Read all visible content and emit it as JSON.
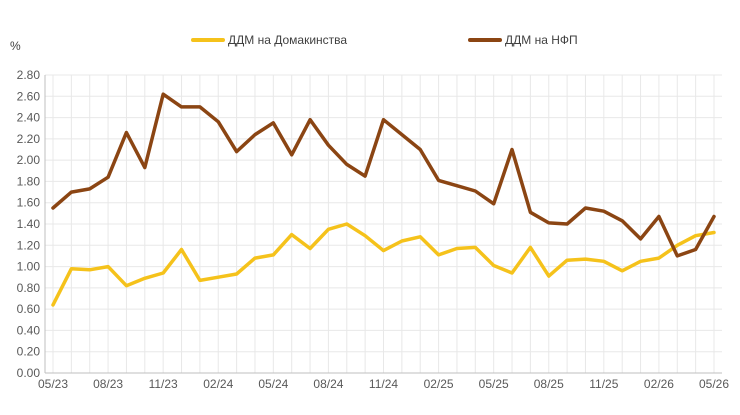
{
  "chart_data": {
    "type": "line",
    "title": "",
    "unit_label": "%",
    "ylim": [
      0,
      2.8
    ],
    "ystep": 0.2,
    "y_ticks": [
      "0.00",
      "0.20",
      "0.40",
      "0.60",
      "0.80",
      "1.00",
      "1.20",
      "1.40",
      "1.60",
      "1.80",
      "2.00",
      "2.20",
      "2.40",
      "2.60",
      "2.80"
    ],
    "x_tick_labels": [
      "05/23",
      "08/23",
      "11/23",
      "02/24",
      "05/24",
      "08/24",
      "11/24",
      "02/25",
      "05/25",
      "08/25",
      "11/25",
      "02/26",
      "05/26"
    ],
    "grid": true,
    "legend_position": "top",
    "x": [
      "05/23",
      "06/23",
      "07/23",
      "08/23",
      "09/23",
      "10/23",
      "11/23",
      "12/23",
      "01/24",
      "02/24",
      "03/24",
      "04/24",
      "05/24",
      "06/24",
      "07/24",
      "08/24",
      "09/24",
      "10/24",
      "11/24",
      "12/24",
      "01/25",
      "02/25",
      "03/25",
      "04/25",
      "05/25",
      "06/25",
      "07/25",
      "08/25",
      "09/25",
      "10/25",
      "11/25",
      "12/25",
      "01/26",
      "02/26",
      "03/26",
      "04/26",
      "05/26"
    ],
    "series": [
      {
        "name": "ДДМ на Домакинства",
        "color": "#F5C21B",
        "values": [
          0.64,
          0.98,
          0.97,
          1.0,
          0.82,
          0.89,
          0.94,
          1.16,
          0.87,
          0.9,
          0.93,
          1.08,
          1.11,
          1.3,
          1.17,
          1.35,
          1.4,
          1.29,
          1.15,
          1.24,
          1.28,
          1.11,
          1.17,
          1.18,
          1.01,
          0.94,
          1.18,
          0.91,
          1.06,
          1.07,
          1.05,
          0.96,
          1.05,
          1.08,
          1.2,
          1.29,
          1.32
        ]
      },
      {
        "name": "ДДМ на НФП",
        "color": "#8B4513",
        "values": [
          1.55,
          1.7,
          1.73,
          1.84,
          2.26,
          1.93,
          2.62,
          2.5,
          2.5,
          2.36,
          2.08,
          2.24,
          2.35,
          2.05,
          2.38,
          2.14,
          1.96,
          1.85,
          2.38,
          2.24,
          2.1,
          1.81,
          1.76,
          1.71,
          1.59,
          2.1,
          1.51,
          1.41,
          1.4,
          1.55,
          1.52,
          1.43,
          1.26,
          1.47,
          1.1,
          1.16,
          1.47
        ]
      }
    ]
  }
}
